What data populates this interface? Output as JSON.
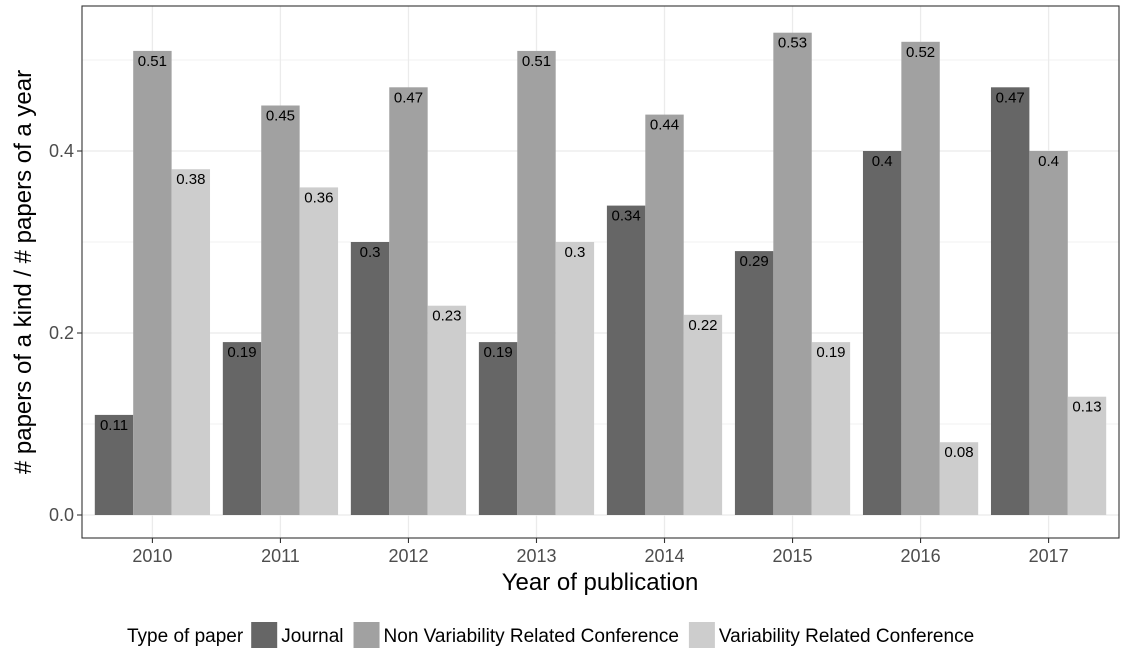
{
  "chart_data": {
    "type": "bar",
    "title": "",
    "xlabel": "Year of publication",
    "ylabel": "# papers of a kind / # papers of a year",
    "categories": [
      "2010",
      "2011",
      "2012",
      "2013",
      "2014",
      "2015",
      "2016",
      "2017"
    ],
    "series": [
      {
        "name": "Journal",
        "values": [
          0.11,
          0.19,
          0.3,
          0.19,
          0.34,
          0.29,
          0.4,
          0.47
        ],
        "color": "#666666"
      },
      {
        "name": "Non Variability Related Conference",
        "values": [
          0.51,
          0.45,
          0.47,
          0.51,
          0.44,
          0.53,
          0.52,
          0.4
        ],
        "color": "#a1a1a1"
      },
      {
        "name": "Variability Related Conference",
        "values": [
          0.38,
          0.36,
          0.23,
          0.3,
          0.22,
          0.19,
          0.08,
          0.13
        ],
        "color": "#cdcdcd"
      }
    ],
    "ylim": [
      0,
      0.5
    ],
    "yticks": [
      "0.0",
      "0.2",
      "0.4"
    ],
    "ytick_values": [
      0,
      0.2,
      0.4
    ],
    "grid": true,
    "legend_title": "Type of paper",
    "legend_position": "bottom"
  }
}
